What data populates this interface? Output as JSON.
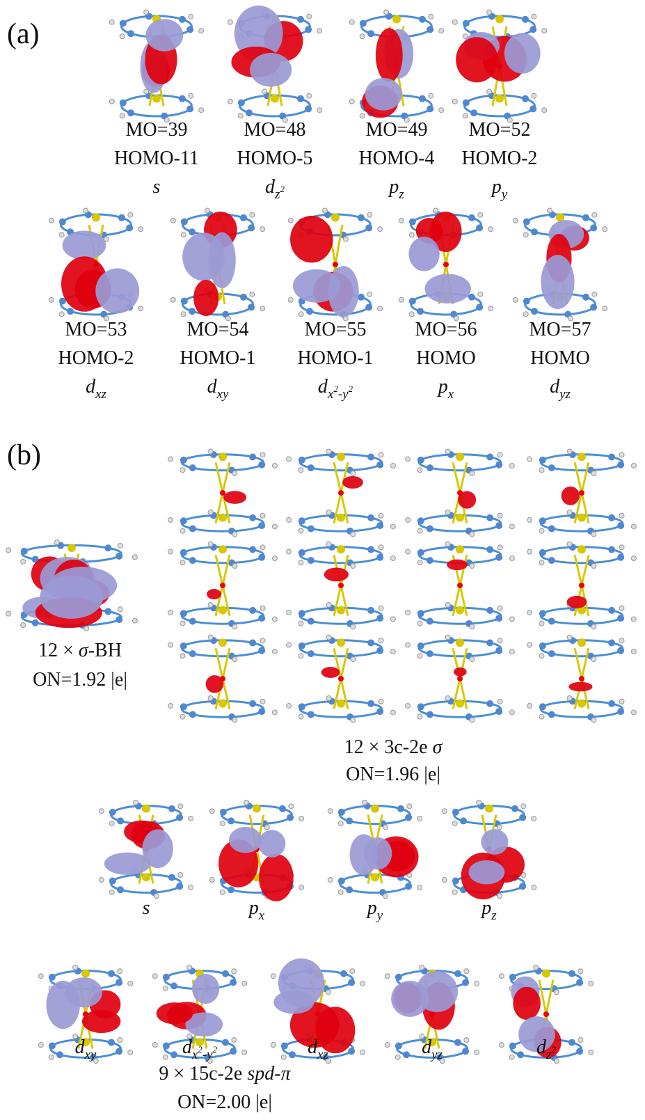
{
  "panel_a": {
    "label": "(a)",
    "orbitals": [
      {
        "mo": "MO=39",
        "homo": "HOMO-11",
        "sym": {
          "base": "s",
          "sub": []
        }
      },
      {
        "mo": "MO=48",
        "homo": "HOMO-5",
        "sym": {
          "base": "d",
          "sub": [
            {
              "t": "z"
            },
            {
              "t": "2",
              "sup": true
            }
          ]
        }
      },
      {
        "mo": "MO=49",
        "homo": "HOMO-4",
        "sym": {
          "base": "p",
          "sub": [
            {
              "t": "z"
            }
          ]
        }
      },
      {
        "mo": "MO=52",
        "homo": "HOMO-2",
        "sym": {
          "base": "p",
          "sub": [
            {
              "t": "y"
            }
          ]
        }
      },
      {
        "mo": "MO=53",
        "homo": "HOMO-2",
        "sym": {
          "base": "d",
          "sub": [
            {
              "t": "xz"
            }
          ]
        }
      },
      {
        "mo": "MO=54",
        "homo": "HOMO-1",
        "sym": {
          "base": "d",
          "sub": [
            {
              "t": "xy"
            }
          ]
        }
      },
      {
        "mo": "MO=55",
        "homo": "HOMO-1",
        "sym": {
          "base": "d",
          "sub": [
            {
              "t": "x"
            },
            {
              "t": "2",
              "sup": true
            },
            {
              "t": "-y"
            },
            {
              "t": "2",
              "sup": true
            }
          ]
        }
      },
      {
        "mo": "MO=56",
        "homo": "HOMO",
        "sym": {
          "base": "p",
          "sub": [
            {
              "t": "x"
            }
          ]
        }
      },
      {
        "mo": "MO=57",
        "homo": "HOMO",
        "sym": {
          "base": "d",
          "sub": [
            {
              "t": "yz"
            }
          ]
        }
      }
    ]
  },
  "panel_b": {
    "label": "(b)",
    "sigma_bh": {
      "caption": [
        {
          "t": "12 × "
        },
        {
          "t": "σ",
          "italic": true
        },
        {
          "t": "-BH"
        }
      ],
      "on": "ON=1.92 |e|"
    },
    "three_center": {
      "caption": [
        {
          "t": "12 × 3c-2e "
        },
        {
          "t": "σ",
          "italic": true
        }
      ],
      "on": "ON=1.96 |e|"
    },
    "delocalized": {
      "orbitals": [
        {
          "base": "s",
          "sub": []
        },
        {
          "base": "p",
          "sub": [
            {
              "t": "x"
            }
          ]
        },
        {
          "base": "p",
          "sub": [
            {
              "t": "y"
            }
          ]
        },
        {
          "base": "p",
          "sub": [
            {
              "t": "z"
            }
          ]
        },
        {
          "base": "d",
          "sub": [
            {
              "t": "xy"
            }
          ]
        },
        {
          "base": "d",
          "sub": [
            {
              "t": "x"
            },
            {
              "t": "2",
              "sup": true
            },
            {
              "t": "-y"
            },
            {
              "t": "2",
              "sup": true
            }
          ]
        },
        {
          "base": "d",
          "sub": [
            {
              "t": "xz"
            }
          ]
        },
        {
          "base": "d",
          "sub": [
            {
              "t": "yz"
            }
          ]
        },
        {
          "base": "d",
          "sub": [
            {
              "t": "z"
            },
            {
              "t": "2",
              "sup": true
            }
          ]
        }
      ],
      "caption": [
        {
          "t": "9 × 15c-2e "
        },
        {
          "t": "spd",
          "italic": true
        },
        {
          "t": "-"
        },
        {
          "t": "π",
          "italic": true
        }
      ],
      "on": "ON=2.00 |e|"
    }
  }
}
